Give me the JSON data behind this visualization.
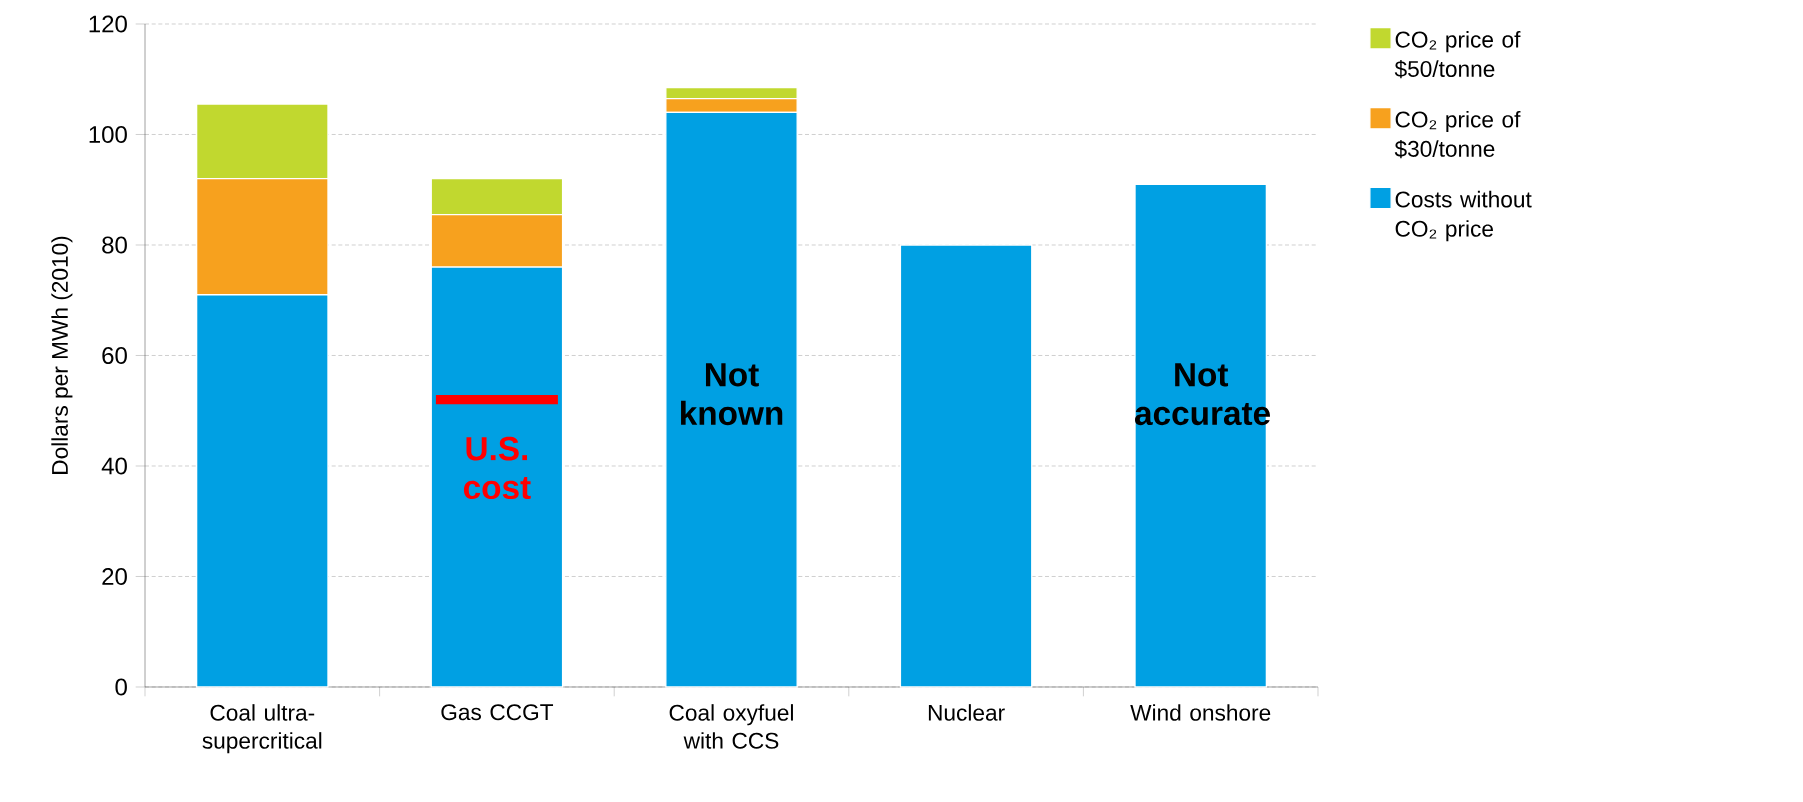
{
  "chart_data": {
    "type": "bar",
    "stacked": true,
    "ylabel": "Dollars per MWh (2010)",
    "categories": [
      "Coal ultra-supercritical",
      "Gas CCGT",
      "Coal oxyfuel with CCS",
      "Nuclear",
      "Wind onshore"
    ],
    "series": [
      {
        "name": "Costs without CO₂ price",
        "color": "#00a0e3",
        "values": [
          71,
          76,
          104,
          80,
          91
        ]
      },
      {
        "name": "CO₂ price of $30/tonne",
        "color": "#f7a11e",
        "values": [
          21,
          9.5,
          2.5,
          null,
          null
        ]
      },
      {
        "name": "CO₂ price of $50/tonne",
        "color": "#c1d82f",
        "values": [
          13.5,
          6.5,
          2,
          null,
          null
        ]
      }
    ],
    "ylim": [
      0,
      120
    ],
    "yticks": [
      0,
      20,
      40,
      60,
      80,
      100,
      120
    ],
    "grid": "y",
    "legend": "top right",
    "ref_lines": [
      {
        "axis": "y",
        "value": 52,
        "label": "U.S. cost",
        "color": "#ff0000"
      }
    ],
    "annotations": [
      "Not known",
      "Not accurate"
    ]
  }
}
